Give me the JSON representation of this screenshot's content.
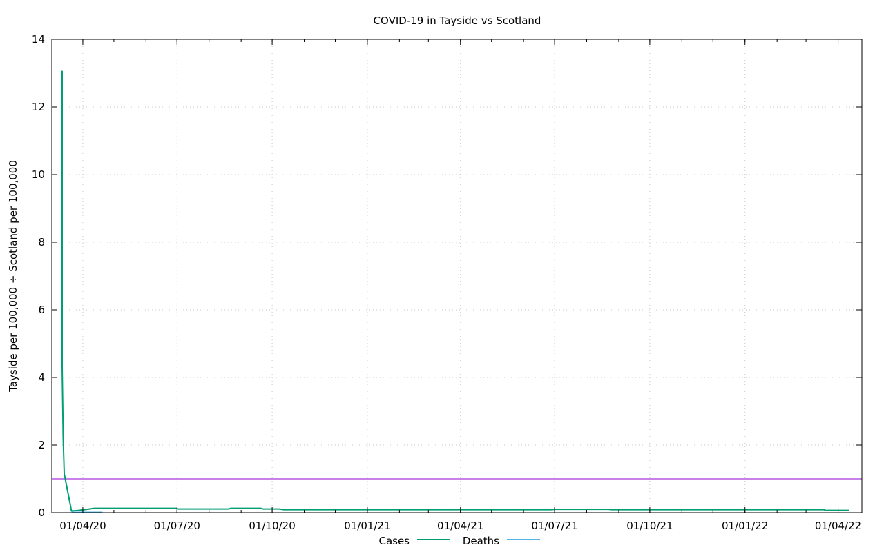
{
  "chart_data": {
    "type": "line",
    "title": "COVID-19 in Tayside vs Scotland",
    "xlabel": "",
    "ylabel": "Tayside per 100,000 ÷ Scotland per 100,000",
    "xlim": [
      "2020-03-02",
      "2022-04-24"
    ],
    "ylim": [
      0,
      14
    ],
    "y_ticks": [
      0,
      2,
      4,
      6,
      8,
      10,
      12,
      14
    ],
    "x_ticks": [
      {
        "date": "2020-04-01",
        "label": "01/04/20"
      },
      {
        "date": "2020-07-01",
        "label": "01/07/20"
      },
      {
        "date": "2020-10-01",
        "label": "01/10/20"
      },
      {
        "date": "2021-01-01",
        "label": "01/01/21"
      },
      {
        "date": "2021-04-01",
        "label": "01/04/21"
      },
      {
        "date": "2021-07-01",
        "label": "01/07/21"
      },
      {
        "date": "2021-10-01",
        "label": "01/10/21"
      },
      {
        "date": "2022-01-01",
        "label": "01/01/22"
      },
      {
        "date": "2022-04-01",
        "label": "01/04/22"
      }
    ],
    "grid": true,
    "legend_position": "bottom-center",
    "reference_line": {
      "y": 1,
      "color": "#9400d3"
    },
    "series": [
      {
        "name": "Cases",
        "color": "#009e73",
        "points": [
          [
            "2020-03-11",
            13.05
          ],
          [
            "2020-03-12",
            13.05
          ],
          [
            "2020-03-12",
            4.3
          ],
          [
            "2020-03-13",
            2.2
          ],
          [
            "2020-03-14",
            1.15
          ],
          [
            "2020-03-21",
            0.05
          ],
          [
            "2020-03-28",
            0.07
          ],
          [
            "2020-04-05",
            0.1
          ],
          [
            "2020-04-12",
            0.13
          ],
          [
            "2020-06-30",
            0.13
          ],
          [
            "2020-07-02",
            0.11
          ],
          [
            "2020-08-20",
            0.11
          ],
          [
            "2020-08-22",
            0.13
          ],
          [
            "2020-09-20",
            0.13
          ],
          [
            "2020-09-22",
            0.11
          ],
          [
            "2020-10-08",
            0.11
          ],
          [
            "2020-10-12",
            0.09
          ],
          [
            "2021-06-28",
            0.09
          ],
          [
            "2021-07-01",
            0.1
          ],
          [
            "2021-08-22",
            0.1
          ],
          [
            "2021-08-25",
            0.09
          ],
          [
            "2022-03-18",
            0.09
          ],
          [
            "2022-03-20",
            0.07
          ],
          [
            "2022-04-12",
            0.07
          ]
        ]
      },
      {
        "name": "Deaths",
        "color": "#56b4e9",
        "points": [
          [
            "2020-03-21",
            0.01
          ],
          [
            "2020-04-20",
            0.01
          ]
        ]
      }
    ]
  }
}
